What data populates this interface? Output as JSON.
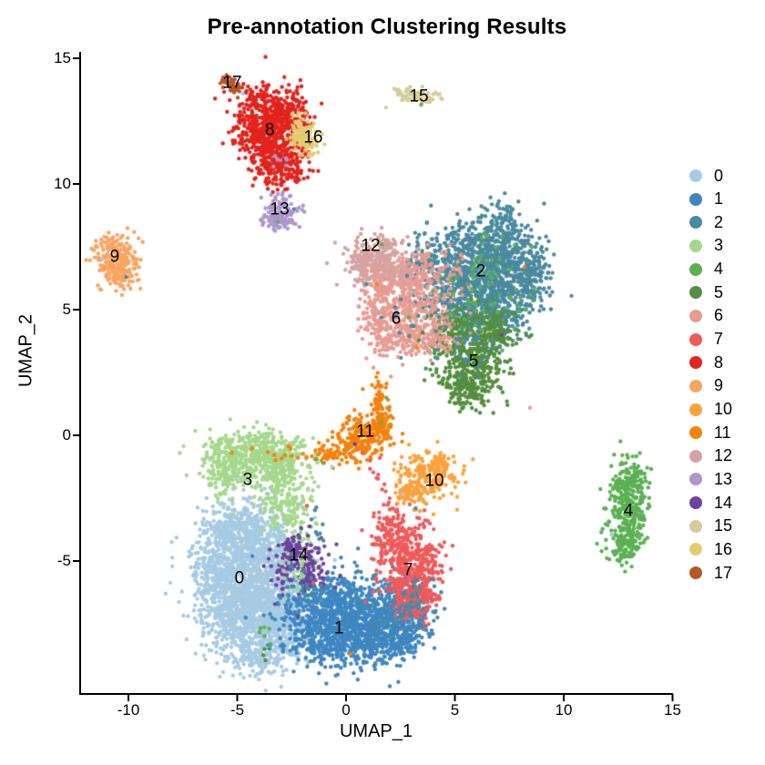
{
  "title": "Pre-annotation Clustering Results",
  "legend": {
    "position": "right",
    "entries": [
      {
        "id": "0",
        "color": "#A6CBE3"
      },
      {
        "id": "1",
        "color": "#3F87C1"
      },
      {
        "id": "2",
        "color": "#4A8AA0"
      },
      {
        "id": "3",
        "color": "#A5D88C"
      },
      {
        "id": "4",
        "color": "#5BB054"
      },
      {
        "id": "5",
        "color": "#538F3F"
      },
      {
        "id": "6",
        "color": "#E79C92"
      },
      {
        "id": "7",
        "color": "#EF5A5B"
      },
      {
        "id": "8",
        "color": "#E2241D"
      },
      {
        "id": "9",
        "color": "#F9A462"
      },
      {
        "id": "10",
        "color": "#FCA23C"
      },
      {
        "id": "11",
        "color": "#F5820D"
      },
      {
        "id": "12",
        "color": "#D6A3A3"
      },
      {
        "id": "13",
        "color": "#AF97CC"
      },
      {
        "id": "14",
        "color": "#6E42A0"
      },
      {
        "id": "15",
        "color": "#D5CC9D"
      },
      {
        "id": "16",
        "color": "#E4CB72"
      },
      {
        "id": "17",
        "color": "#B4582A"
      }
    ]
  },
  "chart_data": {
    "type": "scatter",
    "title": "Pre-annotation Clustering Results",
    "xlabel": "UMAP_1",
    "ylabel": "UMAP_2",
    "x_ticks": [
      -10,
      -5,
      0,
      5,
      10,
      15
    ],
    "y_ticks": [
      15,
      10,
      5,
      0,
      -5
    ],
    "xlim": [
      -12.2,
      15.1
    ],
    "ylim": [
      -10.3,
      15.3
    ],
    "grid": false,
    "legend_position": "right",
    "point_radius_px": 2.2,
    "clusters": [
      {
        "id": "0",
        "color": "#A6CBE3",
        "label_pos": [
          -4.9,
          -5.72
        ],
        "blobs": [
          [
            -5.0,
            -5.0,
            1.05,
            1.15,
            450
          ],
          [
            -4.3,
            -7.2,
            1.0,
            1.0,
            420
          ],
          [
            -5.45,
            -6.5,
            0.8,
            0.9,
            330
          ],
          [
            -3.8,
            -4.3,
            0.85,
            0.8,
            280
          ],
          [
            -3.4,
            -6.2,
            0.85,
            0.95,
            320
          ],
          [
            -3.6,
            -8.0,
            0.85,
            0.65,
            230
          ],
          [
            -5.0,
            -3.7,
            0.75,
            0.55,
            180
          ],
          [
            -2.8,
            -7.4,
            0.7,
            0.75,
            170
          ],
          [
            -5.9,
            -5.3,
            0.5,
            0.7,
            100
          ],
          [
            -4.1,
            -8.9,
            0.5,
            0.35,
            70
          ]
        ]
      },
      {
        "id": "1",
        "color": "#3F87C1",
        "label_pos": [
          -0.33,
          -7.72
        ],
        "blobs": [
          [
            0.3,
            -7.2,
            1.25,
            0.8,
            480
          ],
          [
            -1.2,
            -7.8,
            0.8,
            0.6,
            280
          ],
          [
            1.8,
            -7.4,
            0.9,
            0.7,
            290
          ],
          [
            3.0,
            -6.7,
            0.55,
            0.55,
            170
          ],
          [
            0.8,
            -8.3,
            1.0,
            0.5,
            240
          ],
          [
            -0.6,
            -6.5,
            0.8,
            0.5,
            180
          ],
          [
            2.4,
            -8.1,
            0.6,
            0.4,
            110
          ]
        ]
      },
      {
        "id": "2",
        "color": "#4A8AA0",
        "label_pos": [
          6.19,
          6.49
        ],
        "blobs": [
          [
            6.3,
            6.3,
            1.25,
            1.0,
            480
          ],
          [
            4.9,
            5.6,
            0.85,
            0.8,
            240
          ],
          [
            7.6,
            6.9,
            0.8,
            0.75,
            240
          ],
          [
            5.7,
            7.4,
            0.85,
            0.55,
            190
          ],
          [
            6.9,
            4.9,
            0.8,
            0.65,
            190
          ],
          [
            7.2,
            8.4,
            0.4,
            0.5,
            90
          ],
          [
            8.5,
            6.3,
            0.45,
            0.65,
            110
          ],
          [
            3.6,
            7.0,
            0.45,
            0.5,
            80
          ]
        ]
      },
      {
        "id": "3",
        "color": "#A5D88C",
        "label_pos": [
          -4.52,
          -1.81
        ],
        "blobs": [
          [
            -4.7,
            -0.85,
            0.95,
            0.5,
            270
          ],
          [
            -3.5,
            -0.8,
            0.75,
            0.5,
            210
          ],
          [
            -5.6,
            -1.5,
            0.5,
            0.5,
            110
          ],
          [
            -2.7,
            -1.5,
            0.6,
            0.55,
            120
          ],
          [
            -3.0,
            -2.7,
            0.6,
            0.55,
            90
          ],
          [
            -2.3,
            -3.4,
            0.5,
            0.45,
            55
          ],
          [
            -1.9,
            -4.6,
            0.3,
            0.4,
            25
          ]
        ]
      },
      {
        "id": "4",
        "color": "#5BB054",
        "label_pos": [
          12.97,
          -3.04
        ],
        "blobs": [
          [
            12.95,
            -3.0,
            0.5,
            1.0,
            280
          ],
          [
            12.7,
            -4.4,
            0.35,
            0.4,
            60
          ],
          [
            13.1,
            -1.9,
            0.35,
            0.35,
            45
          ],
          [
            12.6,
            -2.2,
            0.25,
            0.3,
            25
          ]
        ]
      },
      {
        "id": "5",
        "color": "#538F3F",
        "label_pos": [
          5.86,
          2.9
        ],
        "blobs": [
          [
            5.8,
            2.9,
            0.85,
            0.8,
            340
          ],
          [
            6.7,
            4.0,
            0.6,
            0.55,
            140
          ],
          [
            5.0,
            4.2,
            0.5,
            0.5,
            90
          ],
          [
            5.4,
            1.8,
            0.5,
            0.38,
            90
          ]
        ]
      },
      {
        "id": "6",
        "color": "#E79C92",
        "label_pos": [
          2.3,
          4.6
        ],
        "blobs": [
          [
            2.6,
            5.2,
            1.0,
            0.9,
            340
          ],
          [
            1.7,
            6.3,
            0.6,
            0.5,
            140
          ],
          [
            3.9,
            4.1,
            0.7,
            0.5,
            140
          ],
          [
            2.1,
            3.9,
            0.6,
            0.45,
            90
          ],
          [
            3.3,
            6.5,
            0.5,
            0.4,
            70
          ],
          [
            1.4,
            4.7,
            0.4,
            0.4,
            50
          ]
        ]
      },
      {
        "id": "7",
        "color": "#EF5A5B",
        "label_pos": [
          2.85,
          -5.4
        ],
        "blobs": [
          [
            2.9,
            -5.3,
            0.7,
            0.85,
            300
          ],
          [
            2.35,
            -4.3,
            0.5,
            0.55,
            110
          ],
          [
            3.4,
            -6.4,
            0.5,
            0.5,
            110
          ],
          [
            1.9,
            -3.5,
            0.3,
            0.4,
            50
          ],
          [
            3.9,
            -5.0,
            0.3,
            0.4,
            40
          ]
        ]
      },
      {
        "id": "8",
        "color": "#E2241D",
        "label_pos": [
          -3.51,
          12.1
        ],
        "blobs": [
          [
            -3.55,
            12.6,
            0.85,
            0.75,
            290
          ],
          [
            -3.05,
            11.5,
            0.7,
            0.65,
            210
          ],
          [
            -4.1,
            11.9,
            0.5,
            0.55,
            120
          ],
          [
            -2.7,
            12.9,
            0.5,
            0.45,
            100
          ],
          [
            -3.35,
            10.7,
            0.4,
            0.45,
            80
          ],
          [
            -2.25,
            10.6,
            0.3,
            0.35,
            45
          ],
          [
            -4.0,
            13.4,
            0.3,
            0.25,
            35
          ]
        ]
      },
      {
        "id": "9",
        "color": "#F9A462",
        "label_pos": [
          -10.63,
          7.07
        ],
        "blobs": [
          [
            -10.6,
            7.0,
            0.5,
            0.5,
            210
          ],
          [
            -10.3,
            6.4,
            0.3,
            0.28,
            60
          ]
        ]
      },
      {
        "id": "10",
        "color": "#FCA23C",
        "label_pos": [
          4.06,
          -1.85
        ],
        "blobs": [
          [
            3.7,
            -1.7,
            0.7,
            0.5,
            210
          ],
          [
            2.8,
            -2.3,
            0.3,
            0.28,
            45
          ],
          [
            4.3,
            -1.2,
            0.28,
            0.28,
            35
          ]
        ]
      },
      {
        "id": "11",
        "color": "#F5820D",
        "label_pos": [
          0.88,
          0.11
        ],
        "blobs": [
          [
            1.0,
            0.1,
            0.55,
            0.5,
            170
          ],
          [
            0.2,
            -0.4,
            0.45,
            0.35,
            75
          ],
          [
            -0.75,
            -0.8,
            0.45,
            0.22,
            45
          ],
          [
            1.55,
            1.3,
            0.22,
            0.45,
            55
          ],
          [
            1.65,
            0.35,
            0.3,
            0.3,
            45
          ]
        ]
      },
      {
        "id": "12",
        "color": "#D6A3A3",
        "label_pos": [
          1.13,
          7.5
        ],
        "blobs": [
          [
            1.35,
            7.0,
            0.65,
            0.42,
            150
          ],
          [
            0.7,
            6.7,
            0.22,
            0.45,
            45
          ],
          [
            2.3,
            6.5,
            0.38,
            0.3,
            35
          ],
          [
            1.9,
            7.5,
            0.28,
            0.22,
            30
          ]
        ]
      },
      {
        "id": "13",
        "color": "#AF97CC",
        "label_pos": [
          -3.05,
          8.95
        ],
        "blobs": [
          [
            -2.95,
            8.9,
            0.42,
            0.38,
            120
          ],
          [
            -3.25,
            8.5,
            0.22,
            0.18,
            30
          ]
        ]
      },
      {
        "id": "14",
        "color": "#6E42A0",
        "label_pos": [
          -2.18,
          -4.82
        ],
        "blobs": [
          [
            -2.15,
            -5.0,
            0.6,
            0.5,
            145
          ],
          [
            -1.65,
            -5.6,
            0.3,
            0.3,
            40
          ],
          [
            -2.6,
            -4.55,
            0.22,
            0.22,
            25
          ]
        ]
      },
      {
        "id": "15",
        "color": "#D5CC9D",
        "label_pos": [
          3.35,
          13.44
        ],
        "blobs": [
          [
            3.3,
            13.5,
            0.55,
            0.16,
            60
          ],
          [
            2.35,
            13.6,
            0.12,
            0.1,
            10
          ],
          [
            3.9,
            13.3,
            0.15,
            0.12,
            10
          ]
        ]
      },
      {
        "id": "16",
        "color": "#E4CB72",
        "label_pos": [
          -1.51,
          11.81
        ],
        "blobs": [
          [
            -1.95,
            12.2,
            0.28,
            0.26,
            45
          ],
          [
            -1.75,
            11.6,
            0.28,
            0.26,
            45
          ],
          [
            -2.3,
            11.9,
            0.18,
            0.22,
            25
          ]
        ]
      },
      {
        "id": "17",
        "color": "#B4582A",
        "label_pos": [
          -5.23,
          13.99
        ],
        "blobs": [
          [
            -5.35,
            14.05,
            0.2,
            0.14,
            28
          ],
          [
            -5.05,
            13.8,
            0.16,
            0.12,
            20
          ]
        ]
      }
    ],
    "overlays": [
      {
        "color_of": 4,
        "blob": [
          6.1,
          5.3,
          1.2,
          0.75,
          55
        ]
      },
      {
        "color_of": 4,
        "blob": [
          6.4,
          7.1,
          0.8,
          0.6,
          22
        ]
      },
      {
        "color_of": 5,
        "blob": [
          5.9,
          4.4,
          1.0,
          0.4,
          45
        ]
      },
      {
        "color_of": 2,
        "blob": [
          5.7,
          3.6,
          0.7,
          0.5,
          35
        ]
      },
      {
        "color_of": 2,
        "blob": [
          2.9,
          4.7,
          0.9,
          0.7,
          16
        ]
      },
      {
        "color_of": 6,
        "blob": [
          4.7,
          6.2,
          0.45,
          0.7,
          28
        ]
      },
      {
        "color_of": 6,
        "blob": [
          3.4,
          5.6,
          0.5,
          0.5,
          18
        ]
      },
      {
        "color_of": 2,
        "blob": [
          2.1,
          -7.3,
          1.0,
          0.55,
          40
        ]
      },
      {
        "color_of": 2,
        "blob": [
          3.4,
          -6.3,
          0.4,
          0.4,
          14
        ]
      },
      {
        "color_of": 1,
        "blob": [
          -2.35,
          -6.4,
          0.35,
          0.8,
          28
        ]
      },
      {
        "color_of": 7,
        "blob": [
          2.3,
          -6.1,
          0.3,
          0.3,
          10
        ]
      },
      {
        "color_of": 3,
        "blob": [
          -2.45,
          -5.5,
          0.3,
          0.5,
          16
        ]
      },
      {
        "color_of": 13,
        "blob": [
          -3.15,
          10.9,
          0.25,
          0.25,
          7
        ]
      },
      {
        "color_of": 6,
        "blob": [
          2.3,
          3.3,
          0.6,
          0.28,
          14
        ]
      },
      {
        "color_of": 11,
        "blob": [
          -3.1,
          -0.6,
          0.35,
          0.2,
          7
        ]
      },
      {
        "color_of": 2,
        "blob": [
          -1.9,
          -6.0,
          0.5,
          0.35,
          18
        ]
      },
      {
        "color_of": 2,
        "blob": [
          -1.25,
          -3.5,
          0.2,
          0.35,
          8
        ]
      },
      {
        "color_of": 4,
        "blob": [
          -3.7,
          -7.9,
          0.15,
          0.4,
          7
        ]
      },
      {
        "color_of": 12,
        "blob": [
          0.6,
          7.3,
          0.15,
          0.3,
          8
        ]
      }
    ],
    "chains": [
      {
        "color_of": 7,
        "from": [
          1.15,
          -1.05
        ],
        "to": [
          2.35,
          -3.2
        ],
        "n": 15,
        "jitter": 0.09
      },
      {
        "color_of": 11,
        "from": [
          -1.5,
          -0.85
        ],
        "to": [
          -2.75,
          -0.8
        ],
        "n": 6,
        "jitter": 0.07
      },
      {
        "color_of": 11,
        "from": [
          1.5,
          1.75
        ],
        "to": [
          1.45,
          2.45
        ],
        "n": 5,
        "jitter": 0.06
      },
      {
        "color_of": 8,
        "from": [
          -3.3,
          10.2
        ],
        "to": [
          -3.1,
          9.8
        ],
        "n": 3,
        "jitter": 0.05
      }
    ],
    "strays": [
      [
        -4.75,
        13.6,
        0
      ],
      [
        -2.8,
        9.78,
        8
      ],
      [
        8.45,
        1.1,
        6
      ],
      [
        8.2,
        6.7,
        11
      ],
      [
        7.15,
        4.0,
        14
      ],
      [
        12.2,
        -3.95,
        0
      ],
      [
        2.6,
        -2.35,
        0
      ],
      [
        3.2,
        -2.9,
        2
      ],
      [
        -11.2,
        7.0,
        0
      ],
      [
        -10.1,
        6.3,
        2
      ],
      [
        1.4,
        6.0,
        11
      ],
      [
        -5.25,
        -0.7,
        11
      ],
      [
        0.2,
        -8.7,
        11
      ],
      [
        -2.2,
        -7.2,
        14
      ],
      [
        -2.9,
        -6.1,
        14
      ],
      [
        -4.3,
        -4.8,
        1
      ],
      [
        -2.4,
        9.0,
        2
      ],
      [
        -3.15,
        8.5,
        4
      ],
      [
        3.45,
        13.15,
        4
      ],
      [
        1.85,
        1.5,
        4
      ],
      [
        1.6,
        0.5,
        4
      ],
      [
        2.8,
        6.35,
        2
      ],
      [
        2.9,
        3.95,
        2
      ],
      [
        3.25,
        3.5,
        11
      ],
      [
        0.75,
        -0.7,
        7
      ],
      [
        1.55,
        -0.9,
        7
      ],
      [
        -0.65,
        -1.25,
        0
      ],
      [
        -1.35,
        -0.95,
        4
      ],
      [
        -1.05,
        -1.1,
        4
      ],
      [
        -1.8,
        -2.8,
        7
      ],
      [
        0.4,
        -0.35,
        14
      ],
      [
        -1.5,
        -5.85,
        7
      ],
      [
        1.65,
        7.6,
        4
      ],
      [
        -3.75,
        -8.5,
        5
      ],
      [
        -3.8,
        -8.75,
        5
      ],
      [
        -3.7,
        -8.95,
        5
      ]
    ]
  }
}
